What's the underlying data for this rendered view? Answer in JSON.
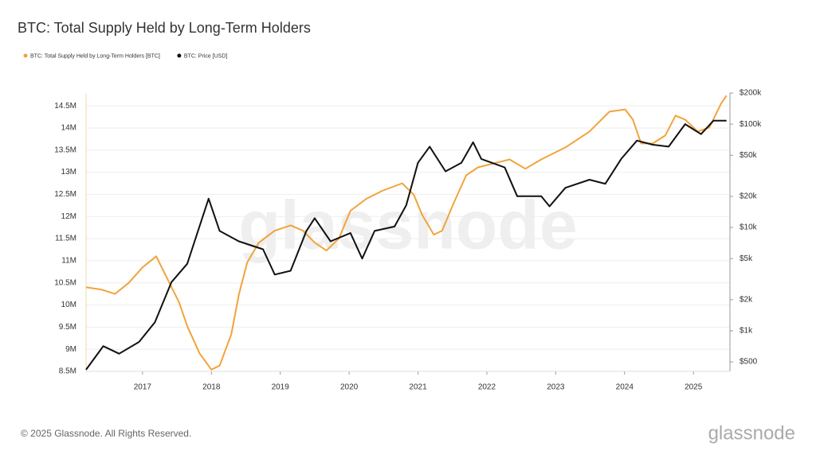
{
  "chart_data": {
    "type": "line",
    "title": "BTC: Total Supply Held by Long-Term Holders",
    "watermark": "glassnode",
    "footer": "© 2025 Glassnode. All Rights Reserved.",
    "logo": "glassnode",
    "legend": "top-left",
    "grid": true,
    "xlim": [
      2016.18,
      2025.53
    ],
    "xticks": [
      2017,
      2018,
      2019,
      2020,
      2021,
      2022,
      2023,
      2024,
      2025
    ],
    "ylim": [
      8500000,
      14790000
    ],
    "yticks": [
      {
        "value": 8500000,
        "label": "8.5M"
      },
      {
        "value": 9000000,
        "label": "9M"
      },
      {
        "value": 9500000,
        "label": "9.5M"
      },
      {
        "value": 10000000,
        "label": "10M"
      },
      {
        "value": 10500000,
        "label": "10.5M"
      },
      {
        "value": 11000000,
        "label": "11M"
      },
      {
        "value": 11500000,
        "label": "11.5M"
      },
      {
        "value": 12000000,
        "label": "12M"
      },
      {
        "value": 12500000,
        "label": "12.5M"
      },
      {
        "value": 13000000,
        "label": "13M"
      },
      {
        "value": 13500000,
        "label": "13.5M"
      },
      {
        "value": 14000000,
        "label": "14M"
      },
      {
        "value": 14500000,
        "label": "14.5M"
      }
    ],
    "y2lim": [
      405,
      200000
    ],
    "y2log": true,
    "y2ticks": [
      {
        "value": 500,
        "label": "$500"
      },
      {
        "value": 1000,
        "label": "$1k"
      },
      {
        "value": 2000,
        "label": "$2k"
      },
      {
        "value": 5000,
        "label": "$5k"
      },
      {
        "value": 10000,
        "label": "$10k"
      },
      {
        "value": 20000,
        "label": "$20k"
      },
      {
        "value": 50000,
        "label": "$50k"
      },
      {
        "value": 100000,
        "label": "$100k"
      },
      {
        "value": 200000,
        "label": "$200k"
      }
    ],
    "series": [
      {
        "name": "BTC: Total Supply Held by Long-Term Holders [BTC]",
        "color": "#f2a33a",
        "axis": "y",
        "x": [
          2016.18,
          2016.4,
          2016.6,
          2016.8,
          2017.0,
          2017.2,
          2017.3,
          2017.53,
          2017.65,
          2017.83,
          2018.0,
          2018.12,
          2018.29,
          2018.4,
          2018.52,
          2018.69,
          2018.92,
          2019.15,
          2019.33,
          2019.5,
          2019.67,
          2019.85,
          2020.02,
          2020.25,
          2020.48,
          2020.77,
          2020.94,
          2021.06,
          2021.23,
          2021.35,
          2021.52,
          2021.7,
          2021.87,
          2022.1,
          2022.33,
          2022.56,
          2022.79,
          2023.14,
          2023.49,
          2023.78,
          2024.01,
          2024.12,
          2024.24,
          2024.41,
          2024.59,
          2024.74,
          2024.88,
          2025.06,
          2025.23,
          2025.4,
          2025.48
        ],
        "values": [
          10400000,
          10350000,
          10250000,
          10500000,
          10850000,
          11100000,
          10780000,
          10060000,
          9520000,
          8900000,
          8540000,
          8630000,
          9340000,
          10240000,
          10960000,
          11410000,
          11680000,
          11800000,
          11680000,
          11410000,
          11230000,
          11500000,
          12130000,
          12400000,
          12580000,
          12750000,
          12490000,
          12040000,
          11590000,
          11680000,
          12310000,
          12930000,
          13110000,
          13200000,
          13290000,
          13080000,
          13290000,
          13560000,
          13920000,
          14370000,
          14420000,
          14190000,
          13650000,
          13650000,
          13830000,
          14280000,
          14190000,
          13920000,
          14010000,
          14550000,
          14730000
        ]
      },
      {
        "name": "BTC: Price [USD]",
        "color": "#111111",
        "axis": "y2",
        "x": [
          2016.18,
          2016.43,
          2016.66,
          2016.95,
          2017.18,
          2017.42,
          2017.65,
          2017.88,
          2017.96,
          2018.12,
          2018.4,
          2018.75,
          2018.92,
          2019.15,
          2019.38,
          2019.5,
          2019.73,
          2020.02,
          2020.19,
          2020.37,
          2020.66,
          2020.83,
          2021.0,
          2021.17,
          2021.4,
          2021.63,
          2021.8,
          2021.92,
          2022.26,
          2022.44,
          2022.79,
          2022.91,
          2023.14,
          2023.49,
          2023.72,
          2023.95,
          2024.18,
          2024.41,
          2024.64,
          2024.88,
          2025.11,
          2025.29,
          2025.48
        ],
        "values": [
          420,
          710,
          600,
          780,
          1210,
          2960,
          4450,
          13100,
          19000,
          9260,
          7340,
          6150,
          3500,
          3810,
          9260,
          12300,
          7340,
          8830,
          5000,
          9260,
          10200,
          16400,
          42300,
          60600,
          34900,
          42300,
          66800,
          46000,
          38100,
          20100,
          20100,
          16000,
          24200,
          29000,
          26500,
          46000,
          69300,
          63200,
          60600,
          100000,
          80000,
          108000,
          108000
        ]
      }
    ]
  }
}
